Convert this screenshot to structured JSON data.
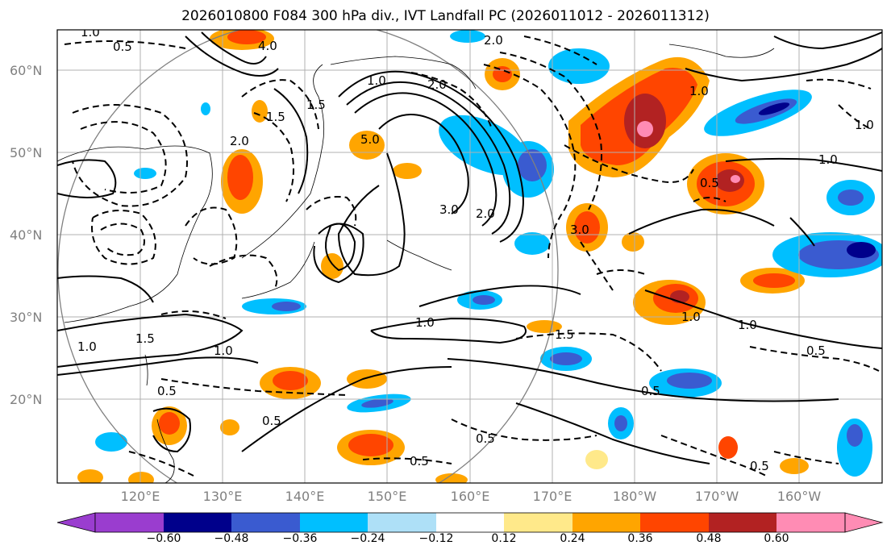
{
  "title": "2026010800 F084 300 hPa div., IVT Landfall PC (2026011012 - 2026011312)",
  "lat_labels": [
    "60°N",
    "50°N",
    "40°N",
    "30°N",
    "20°N"
  ],
  "lon_labels": [
    "120°E",
    "130°E",
    "140°E",
    "150°E",
    "160°E",
    "170°E",
    "180°W",
    "170°W",
    "160°W"
  ],
  "colorbar": {
    "ticks": [
      "−0.60",
      "−0.48",
      "−0.36",
      "−0.24",
      "−0.12",
      "0.12",
      "0.24",
      "0.36",
      "0.48",
      "0.60"
    ],
    "colors": [
      "#9a3dcf",
      "#00008b",
      "#3a5bd0",
      "#00bfff",
      "#aee0f7",
      "#ffffff",
      "#ffe98a",
      "#ffa500",
      "#ff4500",
      "#b22222",
      "#ff8cb4"
    ]
  },
  "contour_labels": [
    "1.0",
    "0.5",
    "4.0",
    "2.0",
    "1.5",
    "2.0",
    "1.0",
    "1.5",
    "2.0",
    "1.0",
    "1.0",
    "0.5",
    "1.0",
    "5.0",
    "3.0",
    "2.0",
    "3.0",
    "1.0",
    "0.5",
    "1.5",
    "1.0",
    "1.0",
    "0.5",
    "0.5",
    "0.5",
    "0.5",
    "0.5",
    "0.5",
    "1.0",
    "1.5",
    "1.0"
  ]
}
